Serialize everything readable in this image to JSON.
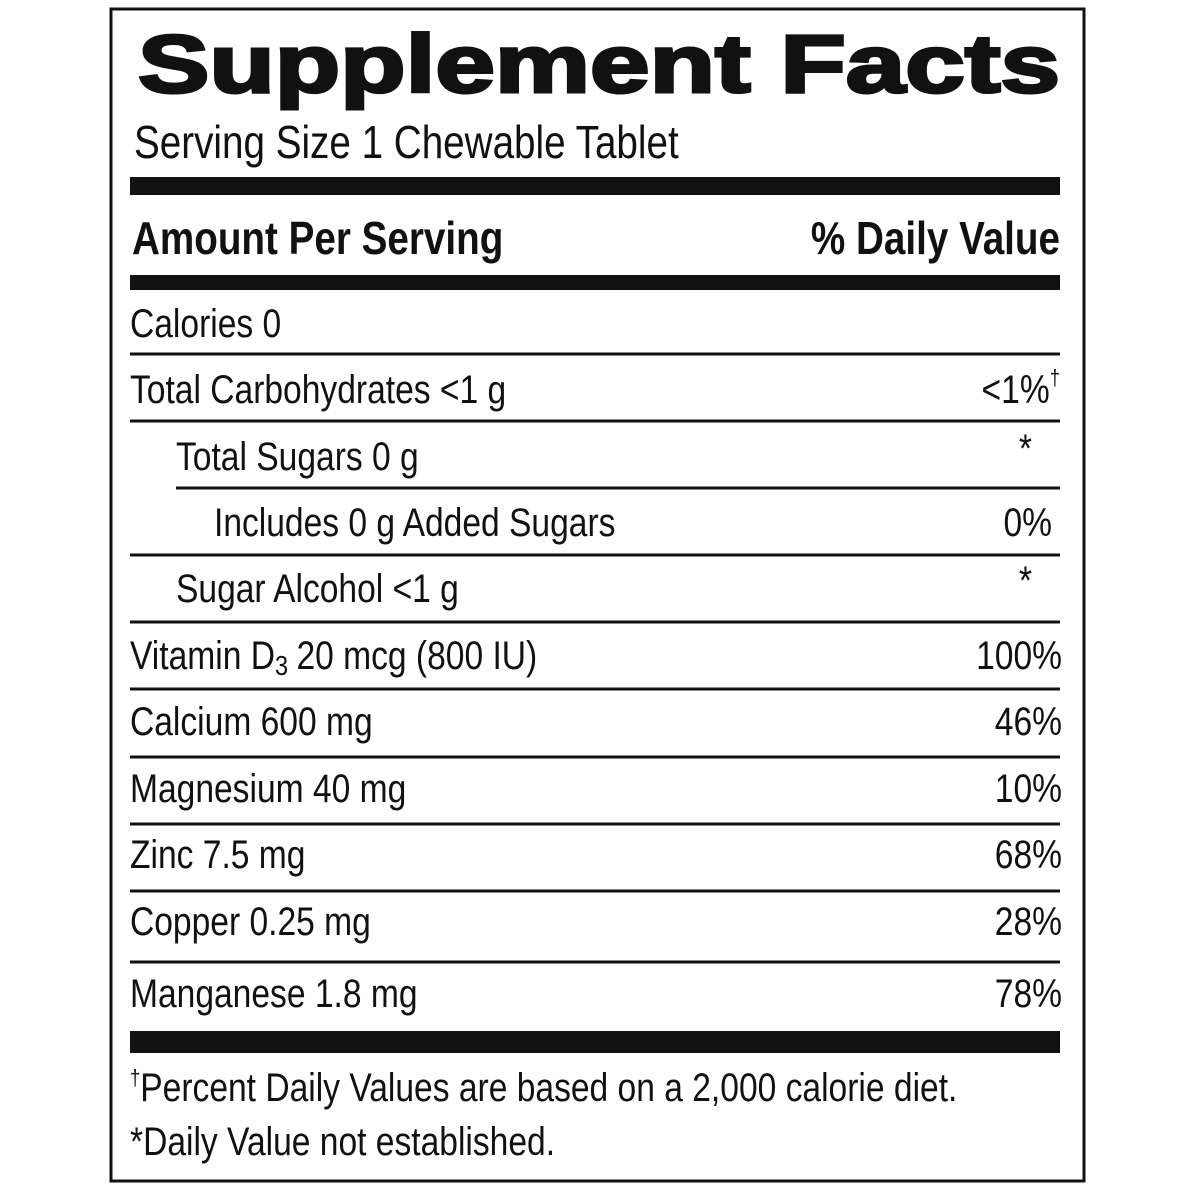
{
  "title": "Supplement Facts",
  "serving_size": "Serving Size 1 Chewable Tablet",
  "header": {
    "amount": "Amount Per Serving",
    "dv": "% Daily Value"
  },
  "rows": [
    {
      "text": "Calories 0"
    },
    {
      "text": "Total Carbohydrates <1 g",
      "dv": "<1%",
      "mark": "†"
    },
    {
      "text": "Total Sugars 0 g",
      "dv": "*"
    },
    {
      "text": "Includes 0 g Added Sugars",
      "dv": "0%"
    },
    {
      "text": "Sugar Alcohol <1 g",
      "dv": "*"
    },
    {
      "name": "Vitamin D",
      "subscript": "3",
      "amount": "20 mcg (800 IU)",
      "dv": "100%"
    },
    {
      "text": "Calcium 600 mg",
      "dv": "46%"
    },
    {
      "text": "Magnesium 40 mg",
      "dv": "10%"
    },
    {
      "text": "Zinc 7.5 mg",
      "dv": "68%"
    },
    {
      "text": "Copper 0.25 mg",
      "dv": "28%"
    },
    {
      "text": "Manganese 1.8 mg",
      "dv": "78%"
    }
  ],
  "footnotes": [
    {
      "mark": "†",
      "text": "Percent Daily Values are based on a 2,000 calorie diet."
    },
    {
      "text": "*Daily Value not established."
    }
  ]
}
